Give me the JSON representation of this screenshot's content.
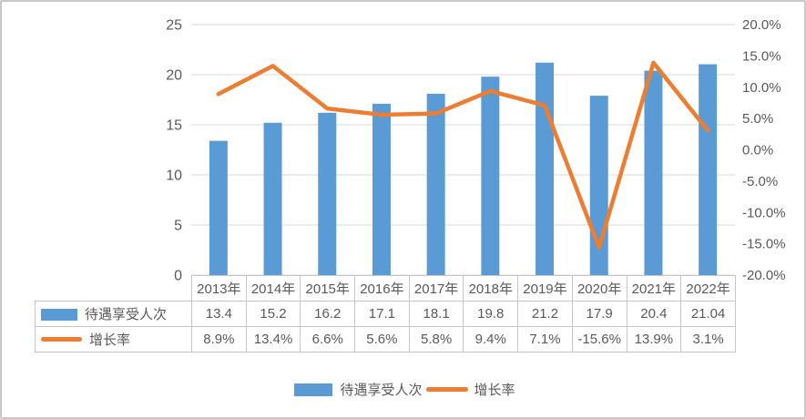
{
  "chart_data": {
    "type": "combo-bar-line",
    "title": "",
    "categories": [
      "2013年",
      "2014年",
      "2015年",
      "2016年",
      "2017年",
      "2018年",
      "2019年",
      "2020年",
      "2021年",
      "2022年"
    ],
    "series": [
      {
        "name": "待遇享受人次",
        "type": "bar",
        "axis": "left",
        "color": "#5B9BD5",
        "values": [
          13.4,
          15.2,
          16.2,
          17.1,
          18.1,
          19.8,
          21.2,
          17.9,
          20.4,
          21.04
        ],
        "labels": [
          "13.4",
          "15.2",
          "16.2",
          "17.1",
          "18.1",
          "19.8",
          "21.2",
          "17.9",
          "20.4",
          "21.04"
        ]
      },
      {
        "name": "增长率",
        "type": "line",
        "axis": "right",
        "color": "#ED7D31",
        "values": [
          8.9,
          13.4,
          6.6,
          5.6,
          5.8,
          9.4,
          7.1,
          -15.6,
          13.9,
          3.1
        ],
        "labels": [
          "8.9%",
          "13.4%",
          "6.6%",
          "5.6%",
          "5.8%",
          "9.4%",
          "7.1%",
          "-15.6%",
          "13.9%",
          "3.1%"
        ]
      }
    ],
    "left_axis": {
      "min": 0,
      "max": 25,
      "step": 5,
      "tick_labels": [
        "0",
        "5",
        "10",
        "15",
        "20",
        "25"
      ]
    },
    "right_axis": {
      "min": -20,
      "max": 20,
      "step": 5,
      "tick_labels": [
        "-20.0%",
        "-15.0%",
        "-10.0%",
        "-5.0%",
        "0.0%",
        "5.0%",
        "10.0%",
        "15.0%",
        "20.0%"
      ]
    },
    "grid": true,
    "data_table_shown": true,
    "legend_position": "bottom"
  },
  "legend": {
    "items": [
      {
        "label": "待遇享受人次",
        "swatch": "bar",
        "color": "#5B9BD5"
      },
      {
        "label": "增长率",
        "swatch": "line",
        "color": "#ED7D31"
      }
    ]
  },
  "colors": {
    "bar": "#5B9BD5",
    "line": "#ED7D31",
    "grid": "#D9D9D9",
    "table_border": "#C6C6C6",
    "text": "#595959",
    "frame_border": "#C9C9C9"
  }
}
